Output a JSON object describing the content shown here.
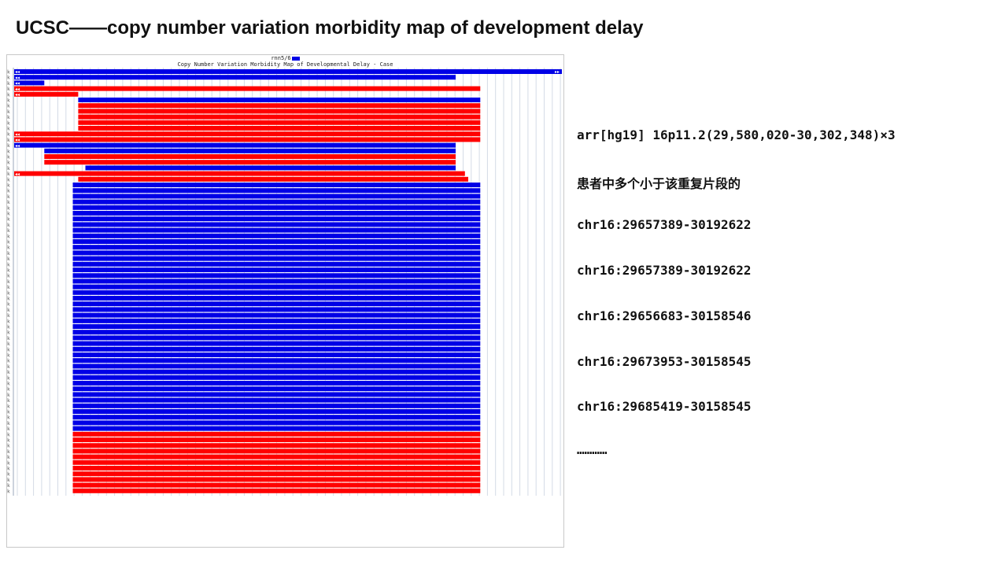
{
  "header": {
    "title": "UCSC——copy number variation morbidity map of development delay"
  },
  "track": {
    "position_label": "rnn5/6",
    "name": "Copy Number Variation Morbidity Map of Developmental Delay - Case",
    "colors": {
      "gain": "#0000e6",
      "loss": "#ff0000",
      "grid": "#d4dbe6",
      "text": "#222222"
    },
    "left_arrow": "◂◂",
    "right_arrow": "▸▸",
    "rows": [
      {
        "s": 0.0,
        "e": 1.0,
        "c": "blue",
        "la": 1,
        "ra": 1
      },
      {
        "s": 0.0,
        "e": 0.806,
        "c": "blue",
        "la": 1,
        "ra": 0
      },
      {
        "s": 0.0,
        "e": 0.055,
        "c": "blue",
        "la": 1,
        "ra": 0
      },
      {
        "s": 0.0,
        "e": 0.851,
        "c": "red",
        "la": 1,
        "ra": 0
      },
      {
        "s": 0.0,
        "e": 0.117,
        "c": "red",
        "la": 1,
        "ra": 0
      },
      {
        "s": 0.117,
        "e": 0.851,
        "c": "blue",
        "la": 0,
        "ra": 0
      },
      {
        "s": 0.117,
        "e": 0.851,
        "c": "red",
        "la": 0,
        "ra": 0
      },
      {
        "s": 0.117,
        "e": 0.851,
        "c": "red",
        "la": 0,
        "ra": 0
      },
      {
        "s": 0.117,
        "e": 0.851,
        "c": "red",
        "la": 0,
        "ra": 0
      },
      {
        "s": 0.117,
        "e": 0.851,
        "c": "red",
        "la": 0,
        "ra": 0
      },
      {
        "s": 0.117,
        "e": 0.851,
        "c": "red",
        "la": 0,
        "ra": 0
      },
      {
        "s": 0.0,
        "e": 0.851,
        "c": "red",
        "la": 1,
        "ra": 0
      },
      {
        "s": 0.0,
        "e": 0.851,
        "c": "red",
        "la": 1,
        "ra": 0
      },
      {
        "s": 0.0,
        "e": 0.806,
        "c": "blue",
        "la": 1,
        "ra": 0
      },
      {
        "s": 0.055,
        "e": 0.806,
        "c": "blue",
        "la": 0,
        "ra": 0
      },
      {
        "s": 0.055,
        "e": 0.806,
        "c": "red",
        "la": 0,
        "ra": 0
      },
      {
        "s": 0.055,
        "e": 0.806,
        "c": "red",
        "la": 0,
        "ra": 0
      },
      {
        "s": 0.13,
        "e": 0.806,
        "c": "blue",
        "la": 0,
        "ra": 0
      },
      {
        "s": 0.0,
        "e": 0.823,
        "c": "red",
        "la": 1,
        "ra": 0
      },
      {
        "s": 0.117,
        "e": 0.829,
        "c": "red",
        "la": 0,
        "ra": 0
      },
      {
        "s": 0.107,
        "e": 0.851,
        "c": "blue",
        "la": 0,
        "ra": 0,
        "n": 44
      },
      {
        "s": 0.107,
        "e": 0.851,
        "c": "red",
        "la": 0,
        "ra": 0,
        "n": 11
      }
    ]
  },
  "notes": {
    "lines": [
      "arr[hg19] 16p11.2(29,580,020-30,302,348)×3",
      "患者中多个小于该重复片段的",
      "chr16:29657389-30192622",
      "chr16:29657389-30192622",
      "chr16:29656683-30158546",
      "chr16:29673953-30158545",
      "chr16:29685419-30158545",
      "…………"
    ]
  }
}
